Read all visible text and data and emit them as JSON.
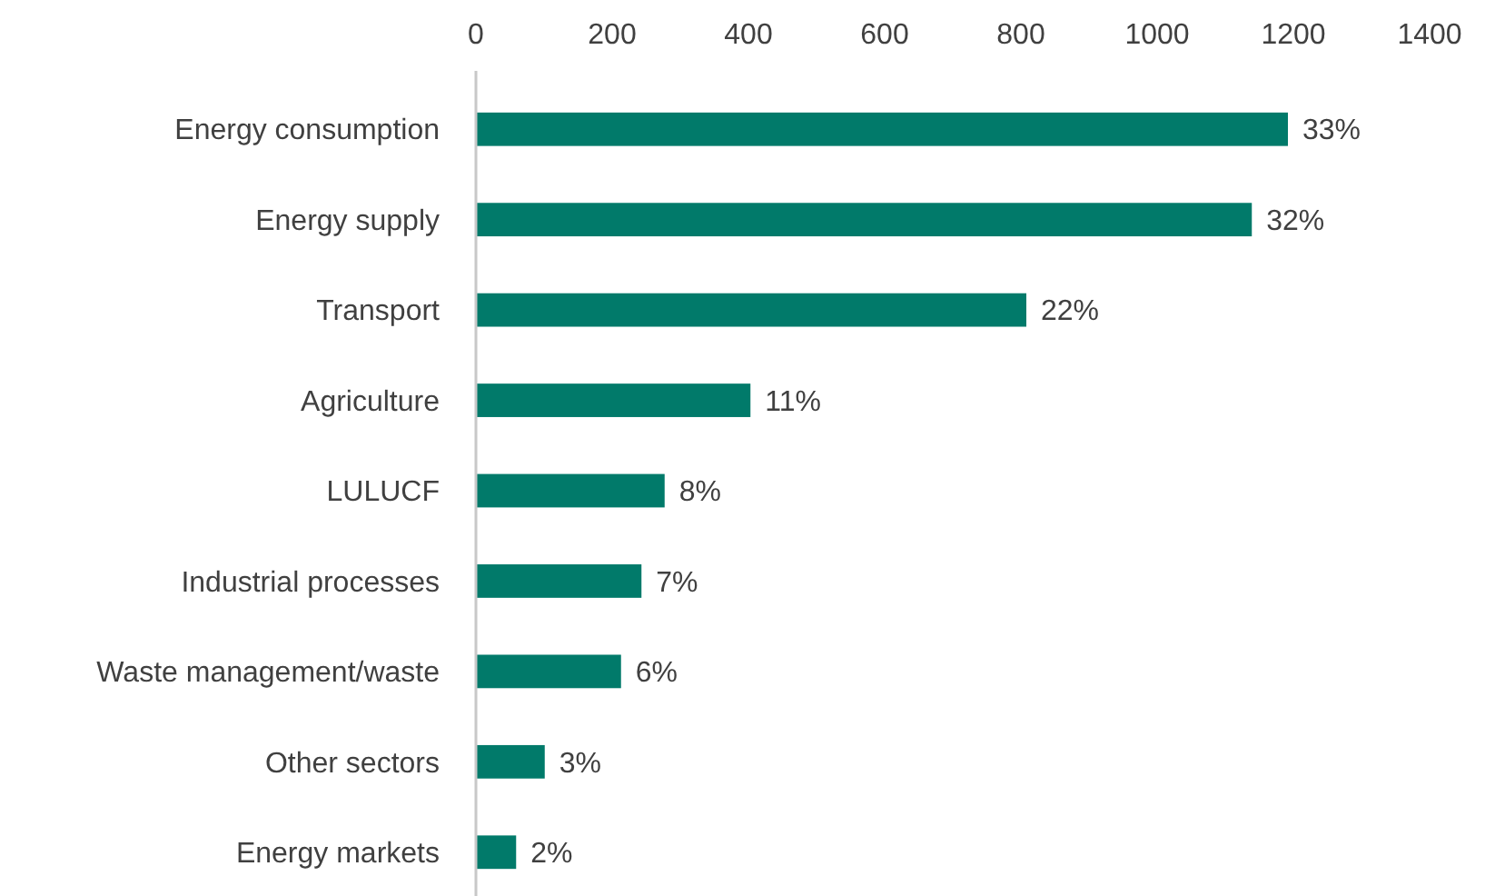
{
  "chart_data": {
    "type": "bar",
    "orientation": "horizontal",
    "categories": [
      "Energy consumption",
      "Energy supply",
      "Transport",
      "Agriculture",
      "LULUCF",
      "Industrial processes",
      "Waste management/waste",
      "Other sectors",
      "Energy markets"
    ],
    "values": [
      1192,
      1139,
      808,
      403,
      277,
      243,
      213,
      101,
      59
    ],
    "annotations": [
      {
        "text": "33%",
        "x": 1192,
        "y": "Energy consumption"
      },
      {
        "text": "32%",
        "x": 1139,
        "y": "Energy supply"
      },
      {
        "text": "22%",
        "x": 808,
        "y": "Transport"
      },
      {
        "text": "11%",
        "x": 403,
        "y": "Agriculture"
      },
      {
        "text": "8%",
        "x": 277,
        "y": "LULUCF"
      },
      {
        "text": "7%",
        "x": 243,
        "y": "Industrial processes"
      },
      {
        "text": "6%",
        "x": 213,
        "y": "Waste management/waste"
      },
      {
        "text": "3%",
        "x": 101,
        "y": "Other sectors"
      },
      {
        "text": "2%",
        "x": 59,
        "y": "Energy markets"
      }
    ],
    "color": "#017a6a",
    "xlim": [
      0,
      1400
    ],
    "xticks": [
      0,
      200,
      400,
      600,
      800,
      1000,
      1200,
      1400
    ],
    "grid": false
  }
}
